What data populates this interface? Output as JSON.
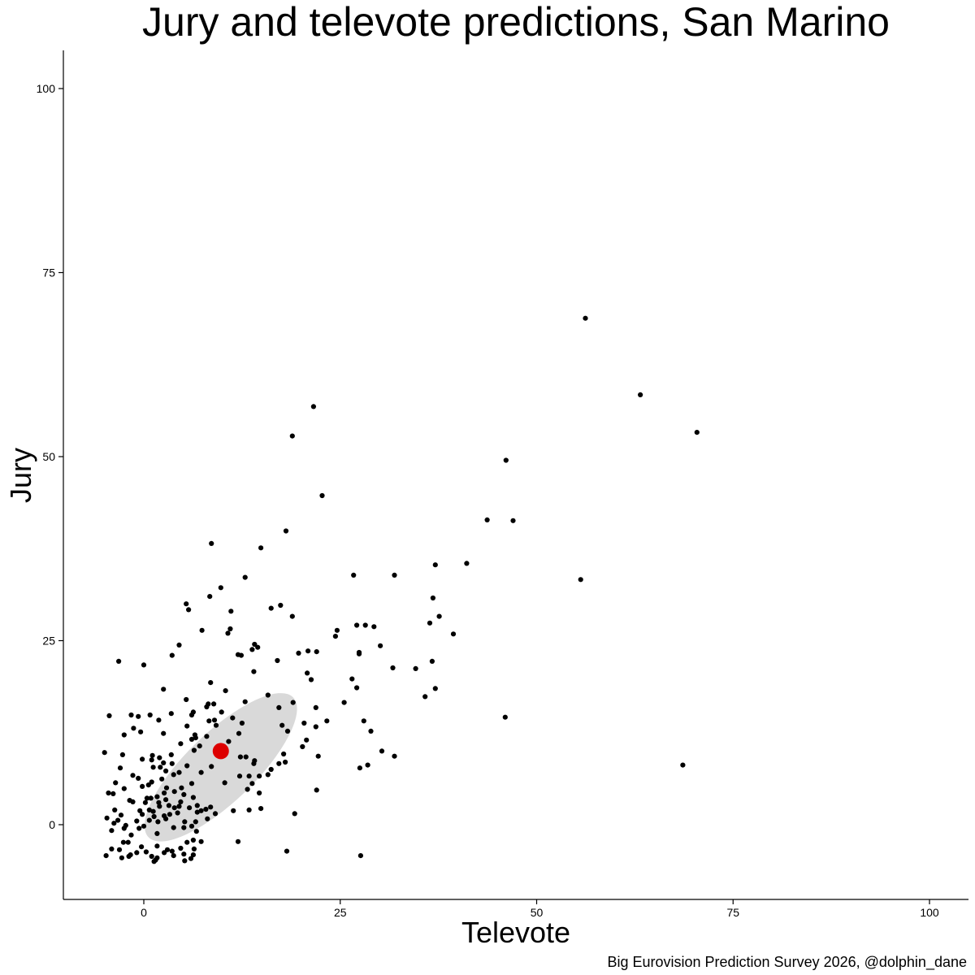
{
  "chart_data": {
    "type": "scatter",
    "title": "Jury and televote predictions, San Marino",
    "xlabel": "Televote",
    "ylabel": "Jury",
    "caption": "Big Eurovision Prediction Survey 2026, @dolphin_dane",
    "xlim": [
      -10,
      105
    ],
    "ylim": [
      -10,
      105
    ],
    "x_ticks": [
      0,
      25,
      50,
      75,
      100
    ],
    "y_ticks": [
      0,
      25,
      50,
      75,
      100
    ],
    "x_tick_labels": [
      "0",
      "25",
      "50",
      "75",
      "100"
    ],
    "y_tick_labels": [
      "0",
      "25",
      "50",
      "75",
      "100"
    ],
    "grid": false,
    "point_color": "#000000",
    "highlight_color": "#dd0000",
    "ellipse_color": "#d9d9d9",
    "highlight_point": {
      "x": 9.8,
      "y": 10.0
    },
    "ellipse": {
      "cx": 9.8,
      "cy": 7.8,
      "semi_major": 12.8,
      "semi_minor": 4.4,
      "angle_deg": 44
    },
    "points": [
      [
        56.2,
        68.8
      ],
      [
        63.2,
        58.4
      ],
      [
        70.4,
        53.3
      ],
      [
        21.6,
        56.8
      ],
      [
        18.9,
        52.8
      ],
      [
        46.1,
        49.5
      ],
      [
        22.7,
        44.7
      ],
      [
        43.7,
        41.4
      ],
      [
        47.0,
        41.3
      ],
      [
        18.1,
        39.9
      ],
      [
        8.6,
        38.2
      ],
      [
        14.9,
        37.6
      ],
      [
        37.1,
        35.3
      ],
      [
        41.1,
        35.5
      ],
      [
        26.7,
        33.9
      ],
      [
        31.9,
        33.9
      ],
      [
        55.6,
        33.3
      ],
      [
        12.9,
        33.6
      ],
      [
        9.8,
        32.2
      ],
      [
        8.4,
        31.0
      ],
      [
        36.8,
        30.8
      ],
      [
        5.4,
        30.0
      ],
      [
        5.7,
        29.2
      ],
      [
        11.1,
        29.0
      ],
      [
        16.2,
        29.4
      ],
      [
        17.4,
        29.8
      ],
      [
        18.9,
        28.3
      ],
      [
        37.6,
        28.3
      ],
      [
        36.4,
        27.4
      ],
      [
        27.1,
        27.1
      ],
      [
        28.2,
        27.1
      ],
      [
        29.3,
        26.9
      ],
      [
        11.0,
        26.6
      ],
      [
        10.7,
        26.0
      ],
      [
        7.4,
        26.4
      ],
      [
        24.6,
        26.4
      ],
      [
        24.4,
        25.6
      ],
      [
        39.4,
        25.9
      ],
      [
        4.5,
        24.4
      ],
      [
        14.1,
        24.5
      ],
      [
        14.5,
        24.1
      ],
      [
        13.8,
        23.8
      ],
      [
        20.9,
        23.6
      ],
      [
        22.0,
        23.5
      ],
      [
        27.4,
        23.4
      ],
      [
        27.4,
        23.2
      ],
      [
        19.7,
        23.3
      ],
      [
        12.0,
        23.1
      ],
      [
        12.4,
        23.0
      ],
      [
        3.6,
        23.0
      ],
      [
        30.1,
        24.3
      ],
      [
        17.0,
        22.3
      ],
      [
        36.7,
        22.2
      ],
      [
        -3.2,
        22.2
      ],
      [
        0.0,
        21.7
      ],
      [
        31.7,
        21.3
      ],
      [
        34.6,
        21.2
      ],
      [
        14.0,
        20.8
      ],
      [
        20.8,
        20.6
      ],
      [
        21.3,
        19.7
      ],
      [
        26.5,
        19.8
      ],
      [
        8.5,
        19.3
      ],
      [
        27.1,
        18.6
      ],
      [
        37.1,
        18.5
      ],
      [
        2.5,
        18.4
      ],
      [
        10.4,
        18.2
      ],
      [
        15.8,
        17.6
      ],
      [
        35.8,
        17.4
      ],
      [
        5.4,
        17.0
      ],
      [
        25.5,
        16.6
      ],
      [
        19.0,
        16.6
      ],
      [
        12.9,
        16.7
      ],
      [
        8.2,
        16.4
      ],
      [
        8.9,
        16.4
      ],
      [
        8.0,
        16.0
      ],
      [
        17.2,
        15.9
      ],
      [
        21.9,
        15.9
      ],
      [
        6.3,
        15.3
      ],
      [
        9.9,
        15.3
      ],
      [
        3.5,
        15.1
      ],
      [
        -4.4,
        14.8
      ],
      [
        -1.6,
        14.9
      ],
      [
        0.8,
        14.9
      ],
      [
        6.1,
        14.9
      ],
      [
        11.3,
        14.5
      ],
      [
        23.3,
        14.1
      ],
      [
        28.0,
        14.1
      ],
      [
        -0.7,
        14.7
      ],
      [
        1.9,
        14.2
      ],
      [
        8.3,
        14.1
      ],
      [
        9.0,
        14.2
      ],
      [
        20.4,
        13.8
      ],
      [
        46.0,
        14.6
      ],
      [
        -1.3,
        13.1
      ],
      [
        5.5,
        13.4
      ],
      [
        9.2,
        13.5
      ],
      [
        12.5,
        13.8
      ],
      [
        17.6,
        13.5
      ],
      [
        21.9,
        13.3
      ],
      [
        28.9,
        12.7
      ],
      [
        18.3,
        12.7
      ],
      [
        6.5,
        12.2
      ],
      [
        -0.4,
        12.6
      ],
      [
        -2.5,
        12.2
      ],
      [
        2.5,
        12.4
      ],
      [
        12.1,
        12.4
      ],
      [
        20.7,
        11.5
      ],
      [
        6.6,
        11.8
      ],
      [
        6.1,
        11.6
      ],
      [
        8.0,
        12.0
      ],
      [
        10.8,
        11.3
      ],
      [
        4.7,
        11.0
      ],
      [
        20.2,
        10.6
      ],
      [
        7.1,
        10.7
      ],
      [
        6.4,
        10.1
      ],
      [
        30.3,
        10.0
      ],
      [
        -5.0,
        9.8
      ],
      [
        1.1,
        9.4
      ],
      [
        3.5,
        9.5
      ],
      [
        17.8,
        9.6
      ],
      [
        12.3,
        9.2
      ],
      [
        13.0,
        9.2
      ],
      [
        22.2,
        9.3
      ],
      [
        31.9,
        9.3
      ],
      [
        -2.7,
        9.5
      ],
      [
        -0.2,
        8.9
      ],
      [
        1.0,
        8.8
      ],
      [
        2.0,
        9.1
      ],
      [
        2.1,
        7.8
      ],
      [
        3.6,
        8.3
      ],
      [
        14.1,
        8.7
      ],
      [
        14.0,
        8.3
      ],
      [
        17.2,
        8.3
      ],
      [
        18.0,
        8.5
      ],
      [
        27.5,
        7.7
      ],
      [
        28.5,
        8.1
      ],
      [
        68.6,
        8.1
      ],
      [
        2.5,
        8.4
      ],
      [
        -3.0,
        7.7
      ],
      [
        -1.4,
        6.7
      ],
      [
        5.5,
        8.0
      ],
      [
        8.6,
        7.9
      ],
      [
        16.2,
        7.5
      ],
      [
        1.2,
        7.8
      ],
      [
        2.8,
        7.3
      ],
      [
        -0.7,
        6.3
      ],
      [
        3.8,
        6.8
      ],
      [
        4.5,
        7.1
      ],
      [
        7.3,
        7.1
      ],
      [
        12.2,
        6.6
      ],
      [
        13.4,
        6.6
      ],
      [
        14.7,
        6.6
      ],
      [
        15.8,
        6.8
      ],
      [
        1.0,
        5.8
      ],
      [
        -3.6,
        5.7
      ],
      [
        2.3,
        6.2
      ],
      [
        6.1,
        5.6
      ],
      [
        10.3,
        5.7
      ],
      [
        13.8,
        5.6
      ],
      [
        -2.5,
        4.9
      ],
      [
        0.6,
        5.4
      ],
      [
        2.9,
        5.0
      ],
      [
        4.8,
        5.0
      ],
      [
        13.2,
        4.8
      ],
      [
        -0.2,
        5.2
      ],
      [
        3.9,
        4.5
      ],
      [
        14.7,
        4.3
      ],
      [
        22.0,
        4.7
      ],
      [
        -3.9,
        4.2
      ],
      [
        -4.5,
        4.3
      ],
      [
        2.6,
        4.3
      ],
      [
        5.1,
        4.1
      ],
      [
        -1.8,
        3.3
      ],
      [
        0.4,
        3.6
      ],
      [
        0.9,
        3.6
      ],
      [
        1.7,
        3.8
      ],
      [
        2.8,
        3.4
      ],
      [
        4.7,
        3.1
      ],
      [
        6.3,
        3.7
      ],
      [
        0.2,
        3.0
      ],
      [
        -1.4,
        3.1
      ],
      [
        1.9,
        3.0
      ],
      [
        3.2,
        2.6
      ],
      [
        5.8,
        2.3
      ],
      [
        6.8,
        2.6
      ],
      [
        8.5,
        2.4
      ],
      [
        -3.7,
        2.0
      ],
      [
        0.7,
        2.0
      ],
      [
        2.0,
        2.5
      ],
      [
        3.9,
        2.3
      ],
      [
        4.5,
        2.5
      ],
      [
        13.4,
        2.0
      ],
      [
        14.9,
        2.2
      ],
      [
        7.9,
        2.1
      ],
      [
        1.2,
        1.8
      ],
      [
        -0.5,
        1.9
      ],
      [
        6.8,
        1.7
      ],
      [
        7.3,
        1.9
      ],
      [
        11.4,
        1.9
      ],
      [
        19.2,
        1.5
      ],
      [
        -2.9,
        1.3
      ],
      [
        -0.2,
        1.4
      ],
      [
        1.3,
        1.1
      ],
      [
        2.6,
        1.2
      ],
      [
        3.3,
        1.4
      ],
      [
        4.3,
        1.6
      ],
      [
        9.1,
        1.5
      ],
      [
        -4.7,
        0.9
      ],
      [
        -3.3,
        0.6
      ],
      [
        -0.9,
        0.5
      ],
      [
        0.7,
        0.6
      ],
      [
        2.8,
        0.8
      ],
      [
        5.2,
        0.4
      ],
      [
        8.1,
        0.8
      ],
      [
        -2.3,
        -0.1
      ],
      [
        -3.8,
        0.2
      ],
      [
        0.0,
        -0.2
      ],
      [
        1.8,
        0.4
      ],
      [
        6.1,
        -0.2
      ],
      [
        6.6,
        0.4
      ],
      [
        3.8,
        -0.4
      ],
      [
        -2.5,
        -0.5
      ],
      [
        -0.6,
        -0.5
      ],
      [
        5.1,
        -0.4
      ],
      [
        -4.1,
        -0.8
      ],
      [
        6.7,
        -0.9
      ],
      [
        -1.6,
        -1.4
      ],
      [
        1.7,
        -1.2
      ],
      [
        7.3,
        -2.3
      ],
      [
        12.0,
        -2.3
      ],
      [
        -2.0,
        -2.4
      ],
      [
        -2.6,
        -2.4
      ],
      [
        5.5,
        -2.4
      ],
      [
        6.3,
        -2.1
      ],
      [
        -0.3,
        -3.0
      ],
      [
        1.7,
        -2.9
      ],
      [
        4.7,
        -3.2
      ],
      [
        -4.1,
        -3.3
      ],
      [
        -3.1,
        -3.4
      ],
      [
        3.0,
        -3.4
      ],
      [
        0.3,
        -3.7
      ],
      [
        6.4,
        -3.3
      ],
      [
        -0.9,
        -3.8
      ],
      [
        3.6,
        -3.6
      ],
      [
        2.6,
        -3.8
      ],
      [
        -1.7,
        -4.1
      ],
      [
        5.1,
        -4.0
      ],
      [
        18.2,
        -3.6
      ],
      [
        -4.8,
        -4.2
      ],
      [
        -1.9,
        -4.3
      ],
      [
        1.0,
        -4.3
      ],
      [
        3.8,
        -4.2
      ],
      [
        6.3,
        -4.1
      ],
      [
        27.6,
        -4.2
      ],
      [
        -2.8,
        -4.5
      ],
      [
        1.5,
        -4.8
      ],
      [
        5.2,
        -4.9
      ],
      [
        1.7,
        -4.5
      ],
      [
        6.0,
        -4.6
      ],
      [
        1.3,
        -5.0
      ]
    ]
  }
}
